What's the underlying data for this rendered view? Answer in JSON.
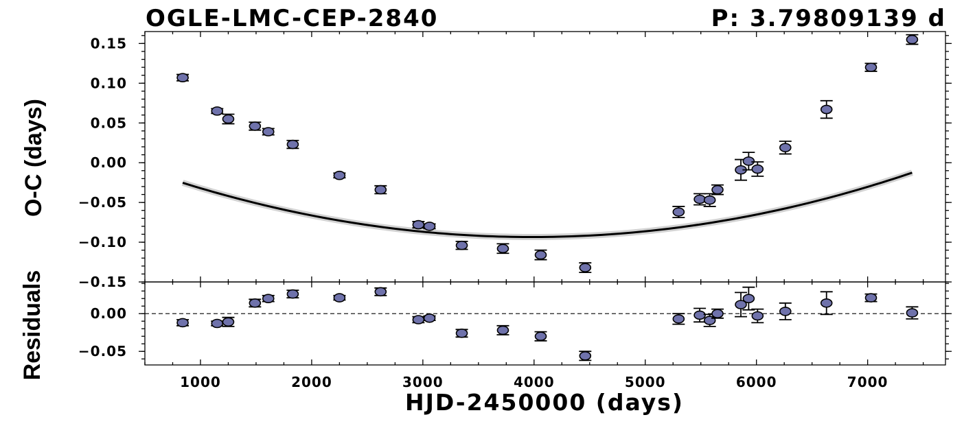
{
  "chart_data": [
    {
      "type": "scatter",
      "title_left": "OGLE-LMC-CEP-2840",
      "title_right": "P: 3.79809139 d",
      "ylabel": "O-C (days)",
      "xlabel": "",
      "xlim": [
        500,
        7700
      ],
      "ylim": [
        -0.15,
        0.165
      ],
      "x_ticks": [
        1000,
        2000,
        3000,
        4000,
        5000,
        6000,
        7000
      ],
      "y_ticks": [
        0.15,
        0.1,
        0.05,
        0.0,
        -0.05,
        -0.1,
        -0.15
      ],
      "y_tick_labels": [
        "0.15",
        "0.10",
        "0.05",
        "0.00",
        "−0.05",
        "−0.10",
        "−0.15"
      ],
      "model": {
        "kind": "quadratic",
        "vertex_x": 3980,
        "vertex_y": -0.0935,
        "a": 6.92e-09
      },
      "series": [
        {
          "points": [
            {
              "x": 840,
              "y": 0.107,
              "err": 0.004
            },
            {
              "x": 1150,
              "y": 0.065,
              "err": 0.003
            },
            {
              "x": 1250,
              "y": 0.055,
              "err": 0.006
            },
            {
              "x": 1490,
              "y": 0.046,
              "err": 0.005
            },
            {
              "x": 1610,
              "y": 0.039,
              "err": 0.004
            },
            {
              "x": 1830,
              "y": 0.023,
              "err": 0.005
            },
            {
              "x": 2250,
              "y": -0.016,
              "err": 0.003
            },
            {
              "x": 2620,
              "y": -0.034,
              "err": 0.005
            },
            {
              "x": 2960,
              "y": -0.078,
              "err": 0.004
            },
            {
              "x": 3060,
              "y": -0.08,
              "err": 0.003
            },
            {
              "x": 3350,
              "y": -0.104,
              "err": 0.005
            },
            {
              "x": 3720,
              "y": -0.108,
              "err": 0.006
            },
            {
              "x": 4060,
              "y": -0.116,
              "err": 0.006
            },
            {
              "x": 4460,
              "y": -0.132,
              "err": 0.006
            },
            {
              "x": 5300,
              "y": -0.062,
              "err": 0.007
            },
            {
              "x": 5490,
              "y": -0.046,
              "err": 0.007
            },
            {
              "x": 5580,
              "y": -0.047,
              "err": 0.008
            },
            {
              "x": 5650,
              "y": -0.034,
              "err": 0.006
            },
            {
              "x": 5860,
              "y": -0.009,
              "err": 0.013
            },
            {
              "x": 5930,
              "y": 0.002,
              "err": 0.011
            },
            {
              "x": 6010,
              "y": -0.008,
              "err": 0.009
            },
            {
              "x": 6260,
              "y": 0.019,
              "err": 0.008
            },
            {
              "x": 6630,
              "y": 0.067,
              "err": 0.011
            },
            {
              "x": 7030,
              "y": 0.12,
              "err": 0.005
            },
            {
              "x": 7400,
              "y": 0.155,
              "err": 0.006
            }
          ]
        }
      ]
    },
    {
      "type": "scatter",
      "ylabel": "Residuals",
      "xlabel": "HJD-2450000 (days)",
      "xlim": [
        500,
        7700
      ],
      "ylim": [
        -0.068,
        0.042
      ],
      "x_ticks": [
        1000,
        2000,
        3000,
        4000,
        5000,
        6000,
        7000
      ],
      "y_ticks": [
        0.0,
        -0.05
      ],
      "y_tick_labels": [
        "0.00",
        "−0.05"
      ],
      "reference_line": 0,
      "series": [
        {
          "points": [
            {
              "x": 840,
              "y": -0.012,
              "err": 0.004
            },
            {
              "x": 1150,
              "y": -0.013,
              "err": 0.003
            },
            {
              "x": 1250,
              "y": -0.011,
              "err": 0.006
            },
            {
              "x": 1490,
              "y": 0.014,
              "err": 0.005
            },
            {
              "x": 1610,
              "y": 0.02,
              "err": 0.004
            },
            {
              "x": 1830,
              "y": 0.026,
              "err": 0.005
            },
            {
              "x": 2250,
              "y": 0.021,
              "err": 0.003
            },
            {
              "x": 2620,
              "y": 0.029,
              "err": 0.005
            },
            {
              "x": 2960,
              "y": -0.008,
              "err": 0.004
            },
            {
              "x": 3060,
              "y": -0.006,
              "err": 0.003
            },
            {
              "x": 3350,
              "y": -0.026,
              "err": 0.005
            },
            {
              "x": 3720,
              "y": -0.022,
              "err": 0.006
            },
            {
              "x": 4060,
              "y": -0.03,
              "err": 0.006
            },
            {
              "x": 4460,
              "y": -0.056,
              "err": 0.006
            },
            {
              "x": 5300,
              "y": -0.007,
              "err": 0.007
            },
            {
              "x": 5490,
              "y": -0.002,
              "err": 0.009
            },
            {
              "x": 5580,
              "y": -0.009,
              "err": 0.008
            },
            {
              "x": 5650,
              "y": 0.0,
              "err": 0.006
            },
            {
              "x": 5860,
              "y": 0.012,
              "err": 0.016
            },
            {
              "x": 5930,
              "y": 0.02,
              "err": 0.015
            },
            {
              "x": 6010,
              "y": -0.003,
              "err": 0.009
            },
            {
              "x": 6260,
              "y": 0.003,
              "err": 0.011
            },
            {
              "x": 6630,
              "y": 0.014,
              "err": 0.015
            },
            {
              "x": 7030,
              "y": 0.021,
              "err": 0.005
            },
            {
              "x": 7400,
              "y": 0.001,
              "err": 0.008
            }
          ]
        }
      ]
    }
  ],
  "colors": {
    "point_fill": "#6f72ab",
    "model_line": "#000000",
    "model_band": "#bfbfbf"
  }
}
